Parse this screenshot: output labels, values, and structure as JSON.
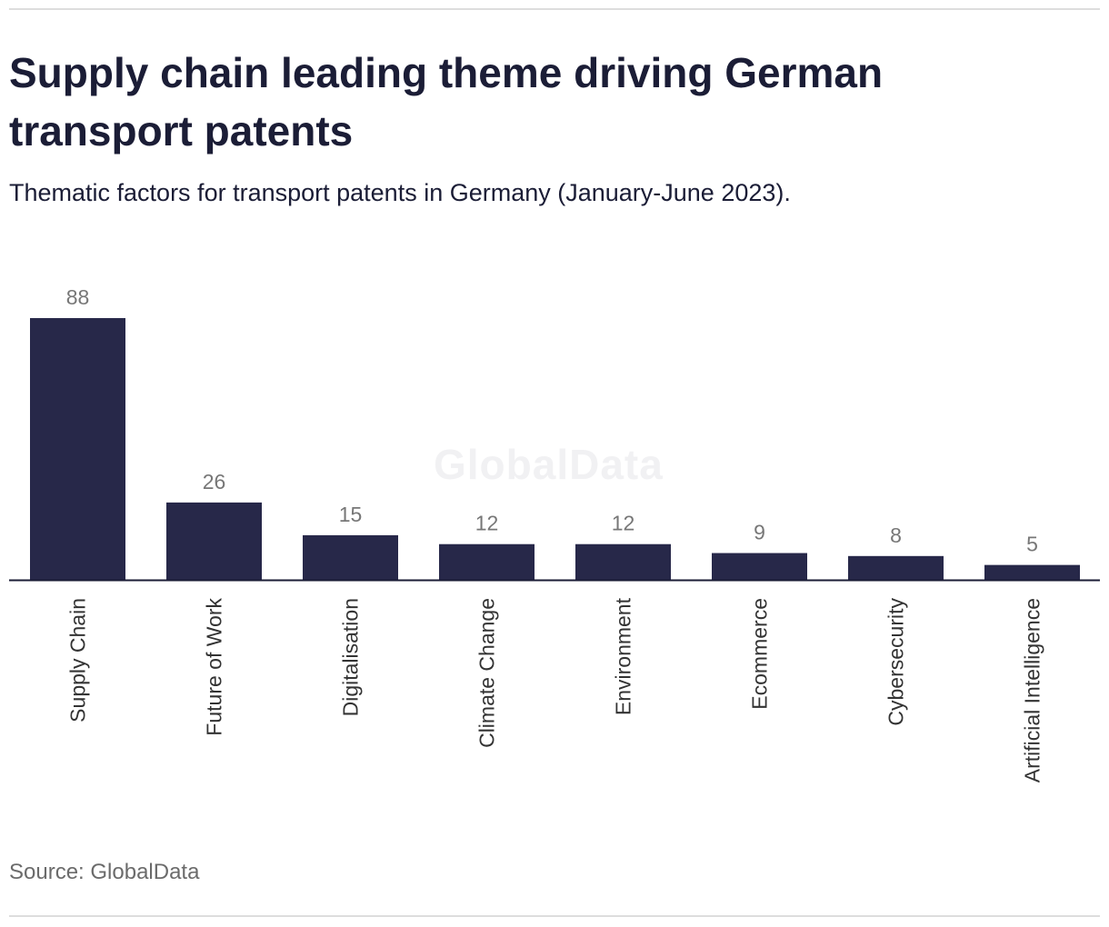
{
  "header": {
    "title": "Supply chain leading theme driving German transport patents",
    "subtitle": "Thematic factors for transport patents in Germany (January-June 2023)."
  },
  "footer": {
    "source": "Source: GlobalData"
  },
  "watermark": "GlobalData",
  "colors": {
    "bar": "#272849",
    "axis": "#1b1d36",
    "value_label": "#777777",
    "category_label": "#333333"
  },
  "chart_data": {
    "type": "bar",
    "title": "Supply chain leading theme driving German transport patents",
    "subtitle": "Thematic factors for transport patents in Germany (January-June 2023).",
    "xlabel": "",
    "ylabel": "",
    "categories": [
      "Supply Chain",
      "Future of Work",
      "Digitalisation",
      "Climate Change",
      "Environment",
      "Ecommerce",
      "Cybersecurity",
      "Artificial Intelligence"
    ],
    "values": [
      88,
      26,
      15,
      12,
      12,
      9,
      8,
      5
    ],
    "ylim": [
      0,
      88
    ],
    "grid": false,
    "data_labels": true
  }
}
